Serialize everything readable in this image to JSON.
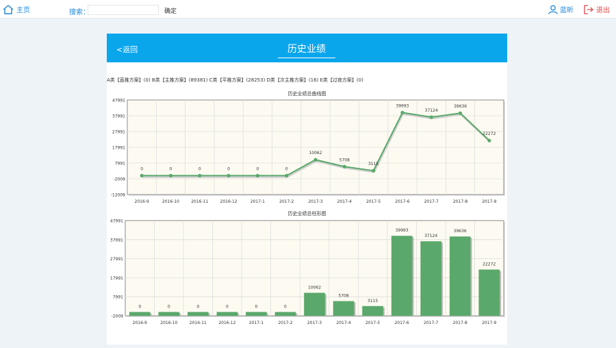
{
  "topbar": {
    "home_label": "主页",
    "search_label": "搜索：",
    "search_value": "",
    "confirm_label": "确定",
    "user_label": "蓝昕",
    "logout_label": "退出"
  },
  "panel": {
    "back_label": "<返回",
    "title": "历史业绩",
    "summary": "A类【直推方案】(0)  B类【主推方案】(89381)  C类【平推方案】(28253)  D类【次主推方案】(16)  E类【过夜方案】(0)"
  },
  "colors": {
    "header_blue": "#0aa6ec",
    "series_green": "#5aa86b",
    "plot_bg": "#fdfbf1"
  },
  "chart_data": [
    {
      "type": "line",
      "title": "历史业绩总曲线图",
      "categories": [
        "2016-9",
        "2016-10",
        "2016-11",
        "2016-12",
        "2017-1",
        "2017-2",
        "2017-3",
        "2017-4",
        "2017-5",
        "2017-6",
        "2017-7",
        "2017-8",
        "2017-9"
      ],
      "values": [
        0,
        0,
        0,
        0,
        0,
        0,
        10062,
        5708,
        3115,
        39993,
        37124,
        39636,
        22272
      ],
      "ylim": [
        -12009,
        47991
      ],
      "yticks": [
        "47991",
        "37991",
        "27991",
        "17991",
        "7991",
        "-2009",
        "-12009"
      ],
      "grid": true
    },
    {
      "type": "bar",
      "title": "历史业绩总柱形图",
      "categories": [
        "2016-9",
        "2016-10",
        "2016-11",
        "2016-12",
        "2017-1",
        "2017-2",
        "2017-3",
        "2017-4",
        "2017-5",
        "2017-6",
        "2017-7",
        "2017-8",
        "2017-9"
      ],
      "values": [
        0,
        0,
        0,
        0,
        0,
        0,
        10062,
        5708,
        3115,
        39993,
        37124,
        39636,
        22272
      ],
      "ylim": [
        -2009,
        47991
      ],
      "yticks": [
        "47991",
        "37991",
        "27991",
        "17991",
        "7991",
        "-2009"
      ],
      "grid": true
    }
  ]
}
